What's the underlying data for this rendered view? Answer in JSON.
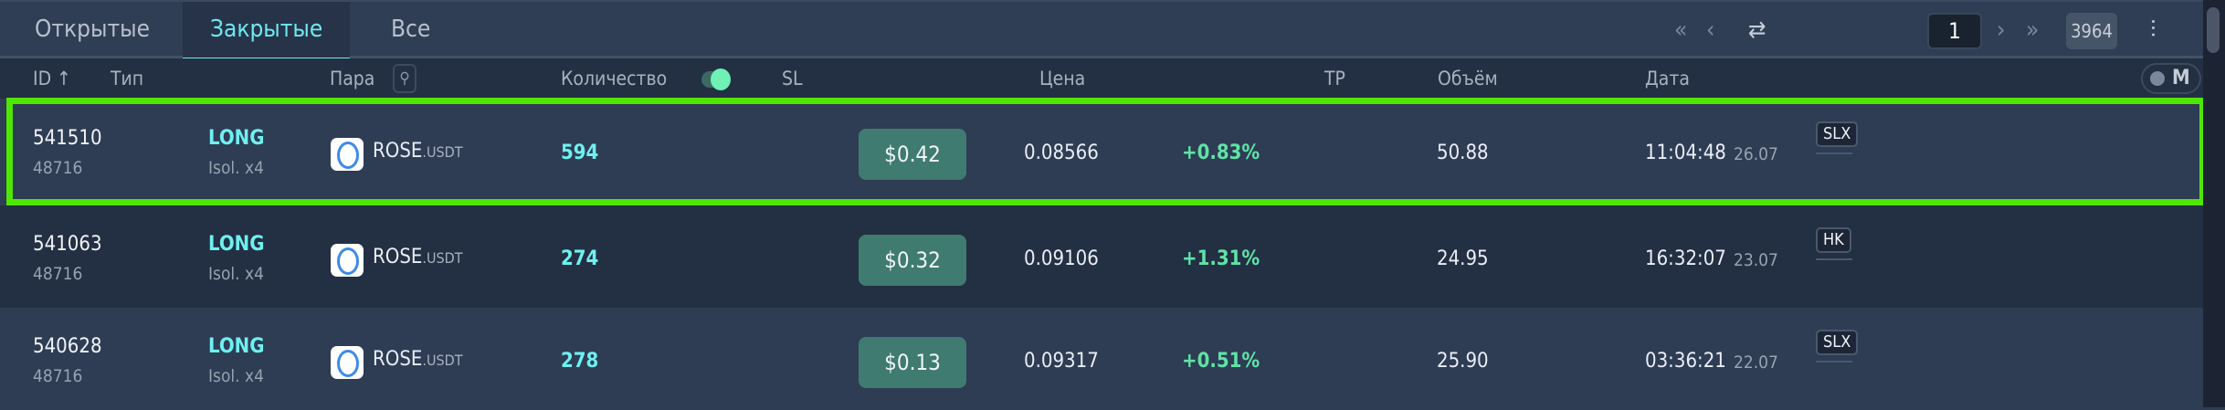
{
  "tabs": [
    {
      "label": "Открытые"
    },
    {
      "label": "Закрытые",
      "active": true
    },
    {
      "label": "Все"
    }
  ],
  "pager": {
    "first_icon": "double-chevron-left-icon",
    "prev_icon": "chevron-left-icon",
    "refresh_icon": "refresh-icon",
    "page": "1",
    "next_icon": "chevron-right-icon",
    "last_icon": "double-chevron-right-icon",
    "total": "3964",
    "settings_icon": "sliders-icon"
  },
  "columns": {
    "id": "ID ↑",
    "type": "Тип",
    "pair": "Пара",
    "quantity": "Количество",
    "sl": "SL",
    "price": "Цена",
    "tp": "TP",
    "volume": "Объём",
    "date": "Дата",
    "mode": "M"
  },
  "rows": [
    {
      "id": "541510",
      "sub_id": "48716",
      "side": "LONG",
      "margin": "Isol. x4",
      "base": "ROSE",
      "quote": ".USDT",
      "qty": "594",
      "sl": "$0.42",
      "price": "0.08566",
      "change": "+0.83%",
      "volume": "50.88",
      "time": "11:04:48",
      "date": "26.07",
      "badge": "SLX",
      "selected": true
    },
    {
      "id": "541063",
      "sub_id": "48716",
      "side": "LONG",
      "margin": "Isol. x4",
      "base": "ROSE",
      "quote": ".USDT",
      "qty": "274",
      "sl": "$0.32",
      "price": "0.09106",
      "change": "+1.31%",
      "volume": "24.95",
      "time": "16:32:07",
      "date": "23.07",
      "badge": "HK"
    },
    {
      "id": "540628",
      "sub_id": "48716",
      "side": "LONG",
      "margin": "Isol. x4",
      "base": "ROSE",
      "quote": ".USDT",
      "qty": "278",
      "sl": "$0.13",
      "price": "0.09317",
      "change": "+0.51%",
      "volume": "25.90",
      "time": "03:36:21",
      "date": "22.07",
      "badge": "SLX"
    }
  ],
  "colors": {
    "accent": "#6fe8ef",
    "positive": "#5fe3a6",
    "sl_button": "#3f7b70",
    "highlight": "#4fe600"
  }
}
